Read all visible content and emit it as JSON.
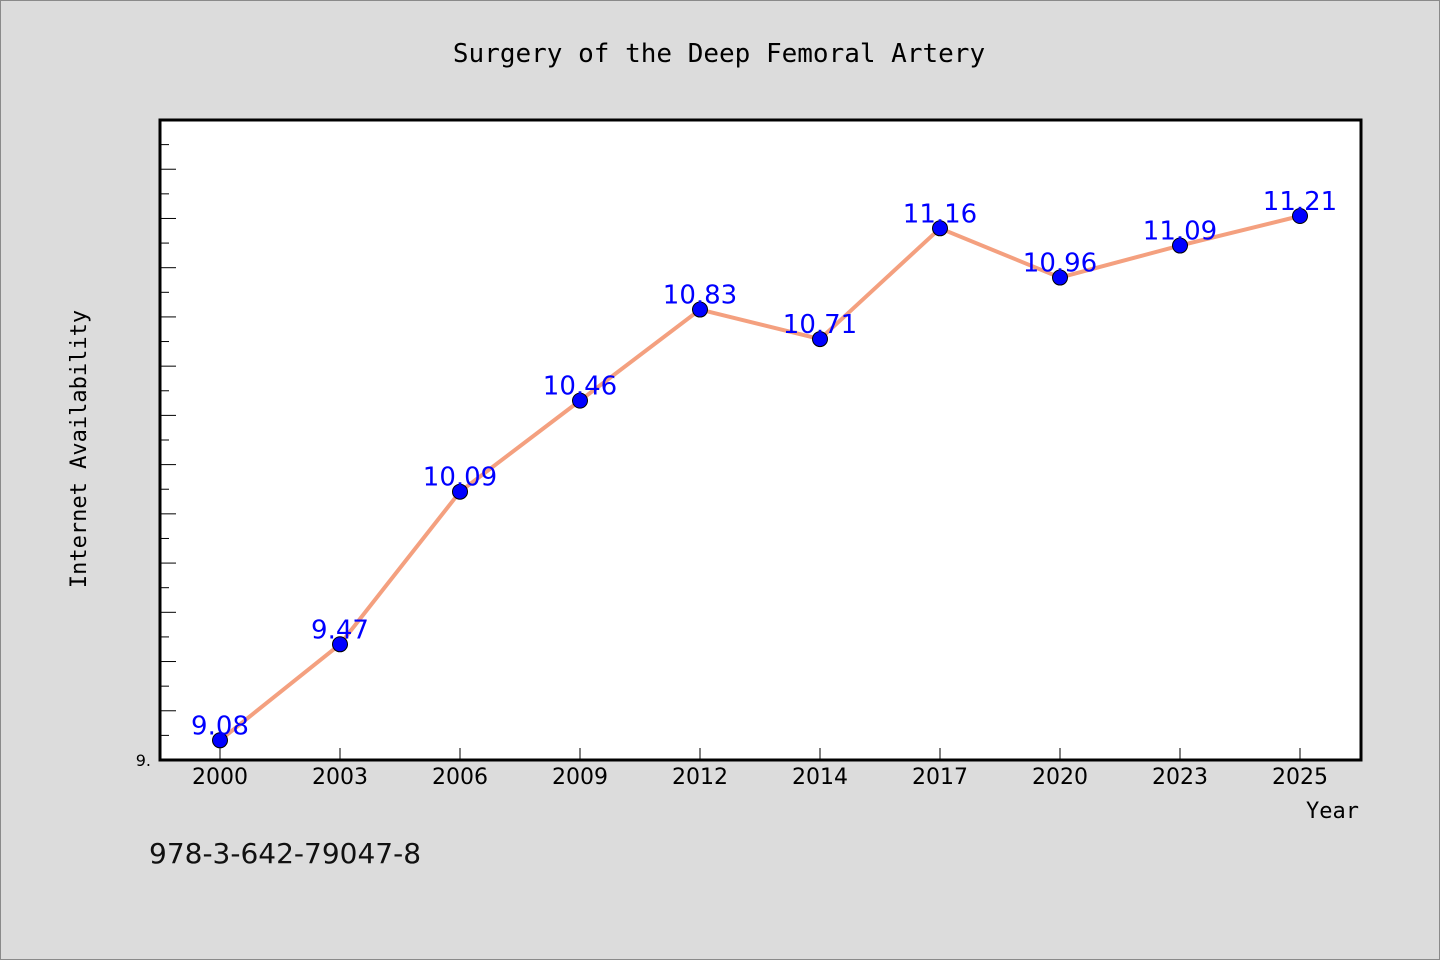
{
  "chart_data": {
    "type": "line",
    "title": "Surgery of the Deep Femoral Artery",
    "xlabel": "Year",
    "ylabel": "Internet Availability",
    "categories": [
      "2000",
      "2003",
      "2006",
      "2009",
      "2012",
      "2014",
      "2017",
      "2020",
      "2023",
      "2025"
    ],
    "series": [
      {
        "values": [
          9.08,
          9.47,
          10.09,
          10.46,
          10.83,
          10.71,
          11.16,
          10.96,
          11.09,
          11.21
        ],
        "labels": [
          "9.08",
          "9.47",
          "10.09",
          "10.46",
          "10.83",
          "10.71",
          "11.16",
          "10.96",
          "11.09",
          "11.21"
        ]
      }
    ],
    "ylim": [
      9.0,
      11.6
    ],
    "y_tick_label": "9.",
    "grid": false,
    "line_color": "#f4a07f",
    "marker_color": "#0000ff",
    "label_color": "#0000ff"
  },
  "footnote": "978-3-642-79047-8"
}
